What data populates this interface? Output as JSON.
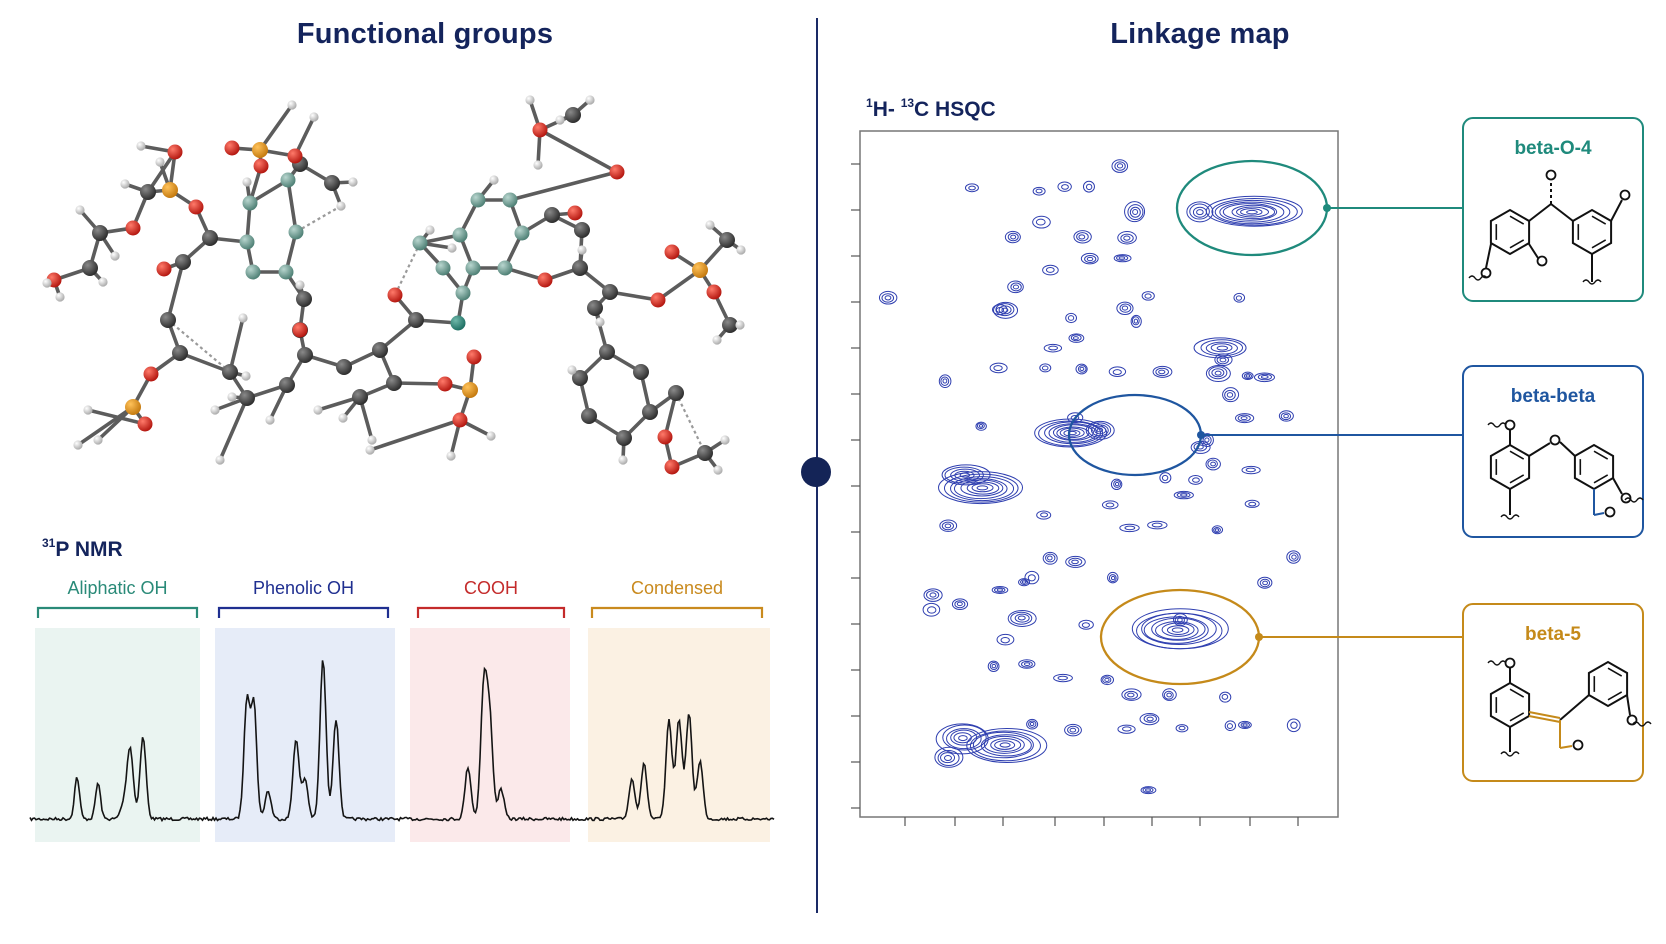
{
  "titles": {
    "left": "Functional groups",
    "right": "Linkage map"
  },
  "p_nmr": {
    "label_sup": "31",
    "label_main": "P NMR",
    "regions": [
      {
        "label": "Aliphatic OH",
        "color": "#2a8a78",
        "fill": "#eaf4f1"
      },
      {
        "label": "Phenolic OH",
        "color": "#1f2f90",
        "fill": "#e6ecf8"
      },
      {
        "label": "COOH",
        "color": "#c42b2b",
        "fill": "#fbe9ea"
      },
      {
        "label": "Condensed",
        "color": "#c98a1e",
        "fill": "#fbf1e3"
      }
    ]
  },
  "hsqc": {
    "label_sup1": "1",
    "label_h": "H- ",
    "label_sup2": "13",
    "label_c": "C HSQC",
    "contour_color": "#2f3fb0"
  },
  "linkages": [
    {
      "label": "beta-O-4",
      "color": "#1f8a7c"
    },
    {
      "label": "beta-beta",
      "color": "#1f56a0"
    },
    {
      "label": "beta-5",
      "color": "#c58a1a"
    }
  ]
}
